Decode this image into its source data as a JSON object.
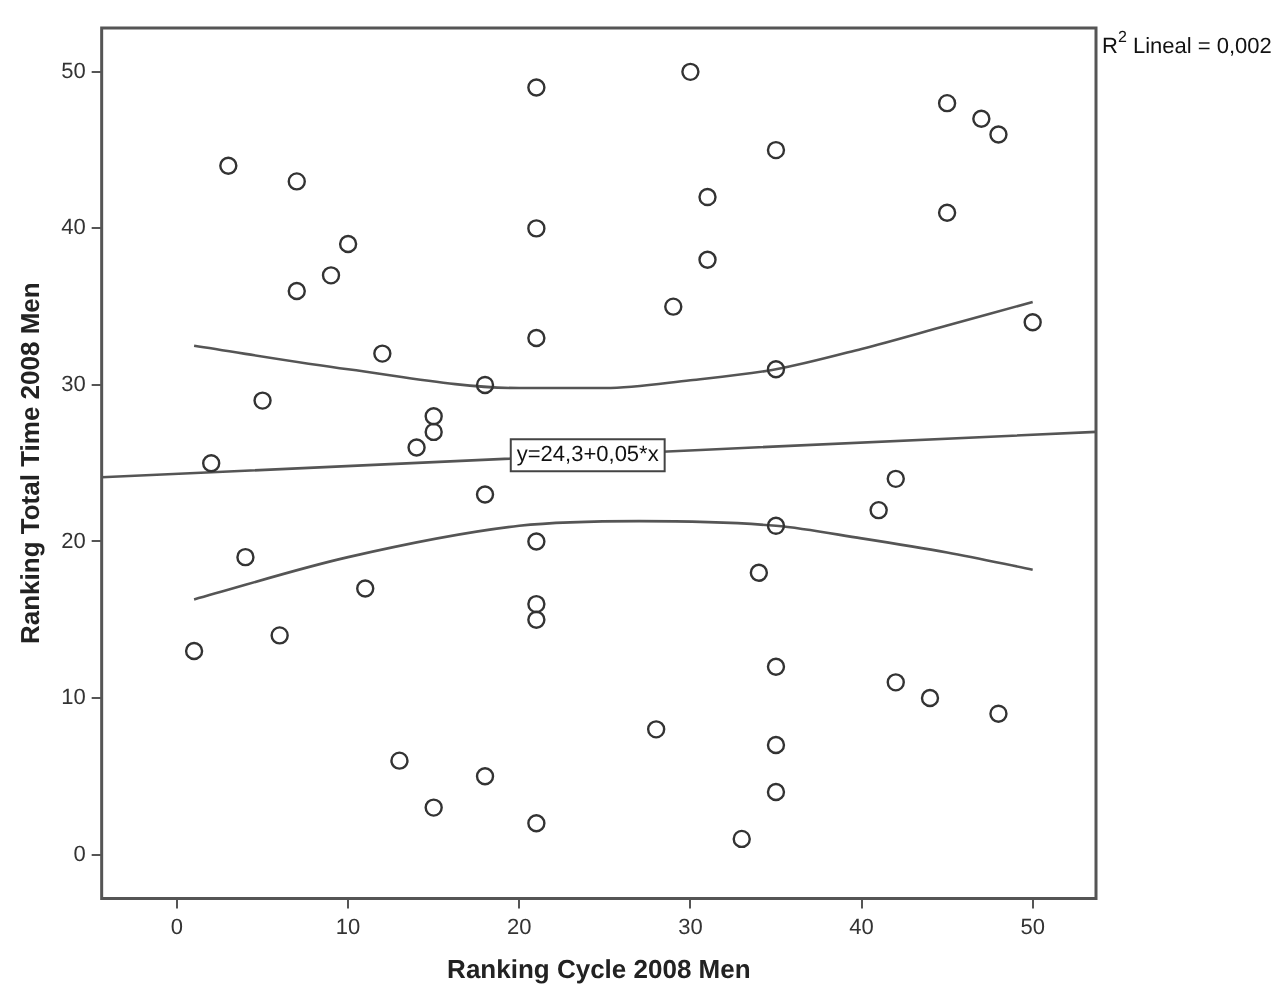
{
  "chart_data": {
    "type": "scatter",
    "xlabel": "Ranking Cycle 2008 Men",
    "ylabel": "Ranking Total Time 2008 Men",
    "xlim": [
      -4.4,
      53.7
    ],
    "ylim": [
      -2.8,
      52.8
    ],
    "xticks": [
      0,
      10,
      20,
      30,
      40,
      50
    ],
    "yticks": [
      0,
      10,
      20,
      30,
      40,
      50
    ],
    "grid": false,
    "legend": false,
    "annotations": [
      "R$^{2}$ Lineal = 0,002",
      {
        "text": "y=24,3+0,05*x",
        "x": 24,
        "y": 25.5
      }
    ],
    "series": [
      {
        "color": "#333333",
        "marker": "circle",
        "x": [
          3,
          7,
          7,
          9,
          10,
          12,
          5,
          21,
          21,
          21,
          18,
          15,
          15,
          14,
          30,
          45,
          47,
          48,
          35,
          31,
          45,
          31,
          29,
          35,
          50,
          2,
          4,
          1,
          6,
          11,
          18,
          21,
          21,
          21,
          13,
          18,
          15,
          21,
          42,
          41,
          35,
          34,
          35,
          42,
          44,
          48,
          28,
          35,
          35,
          33
        ],
        "values": [
          44,
          43,
          36,
          37,
          39,
          32,
          29,
          49,
          40,
          33,
          30,
          28,
          27,
          26,
          50,
          48,
          47,
          46,
          45,
          42,
          41,
          38,
          35,
          31,
          34,
          25,
          19,
          13,
          14,
          17,
          23,
          20,
          16,
          15,
          6,
          5,
          3,
          2,
          24,
          22,
          21,
          18,
          12,
          11,
          10,
          9,
          8,
          7,
          4,
          1
        ]
      },
      {
        "type": "line",
        "color": "#555555",
        "marker": "none",
        "line_style": "solid",
        "x": [
          -4.4,
          53.7
        ],
        "values": [
          24.1,
          27
        ]
      },
      {
        "type": "line",
        "color": "#555555",
        "marker": "none",
        "line_style": "solid",
        "x": [
          1,
          10,
          20,
          25,
          30,
          35,
          40,
          45,
          50
        ],
        "values": [
          32.5,
          31,
          29.8,
          29.8,
          30.3,
          31,
          32.3,
          33.8,
          35.3
        ]
      },
      {
        "type": "line",
        "color": "#555555",
        "marker": "none",
        "line_style": "solid",
        "x": [
          1,
          10,
          20,
          27,
          35,
          40,
          45,
          50
        ],
        "values": [
          16.3,
          19,
          21,
          21.3,
          21,
          20.2,
          19.3,
          18.2
        ]
      }
    ]
  }
}
